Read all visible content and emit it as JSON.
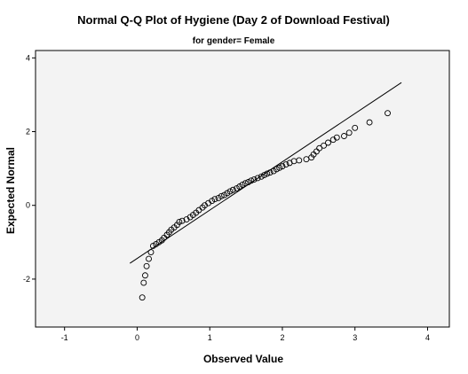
{
  "chart_data": {
    "type": "scatter",
    "title": "Normal Q-Q Plot of Hygiene (Day 2 of Download Festival)",
    "subtitle": "for gender= Female",
    "xlabel": "Observed Value",
    "ylabel": "Expected Normal",
    "xlim": [
      -1.4,
      4.3
    ],
    "ylim": [
      -3.3,
      4.2
    ],
    "x_ticks": [
      -1,
      0,
      1,
      2,
      3,
      4
    ],
    "y_ticks": [
      -2,
      0,
      2,
      4
    ],
    "grid": false,
    "reference_line": {
      "x": [
        -0.1,
        3.64
      ],
      "y": [
        -1.57,
        3.33
      ]
    },
    "points": [
      [
        0.07,
        -2.5
      ],
      [
        0.09,
        -2.1
      ],
      [
        0.11,
        -1.9
      ],
      [
        0.13,
        -1.65
      ],
      [
        0.16,
        -1.45
      ],
      [
        0.19,
        -1.27
      ],
      [
        0.22,
        -1.1
      ],
      [
        0.26,
        -1.05
      ],
      [
        0.3,
        -1.0
      ],
      [
        0.34,
        -0.95
      ],
      [
        0.37,
        -0.88
      ],
      [
        0.41,
        -0.8
      ],
      [
        0.44,
        -0.73
      ],
      [
        0.47,
        -0.66
      ],
      [
        0.51,
        -0.6
      ],
      [
        0.55,
        -0.53
      ],
      [
        0.58,
        -0.45
      ],
      [
        0.62,
        -0.42
      ],
      [
        0.68,
        -0.38
      ],
      [
        0.73,
        -0.32
      ],
      [
        0.77,
        -0.26
      ],
      [
        0.81,
        -0.2
      ],
      [
        0.85,
        -0.13
      ],
      [
        0.9,
        -0.06
      ],
      [
        0.93,
        0.0
      ],
      [
        0.98,
        0.06
      ],
      [
        1.03,
        0.12
      ],
      [
        1.07,
        0.17
      ],
      [
        1.12,
        0.2
      ],
      [
        1.16,
        0.25
      ],
      [
        1.2,
        0.28
      ],
      [
        1.24,
        0.33
      ],
      [
        1.28,
        0.38
      ],
      [
        1.32,
        0.42
      ],
      [
        1.37,
        0.46
      ],
      [
        1.41,
        0.51
      ],
      [
        1.45,
        0.56
      ],
      [
        1.49,
        0.6
      ],
      [
        1.53,
        0.63
      ],
      [
        1.57,
        0.67
      ],
      [
        1.61,
        0.7
      ],
      [
        1.66,
        0.74
      ],
      [
        1.71,
        0.78
      ],
      [
        1.75,
        0.82
      ],
      [
        1.79,
        0.86
      ],
      [
        1.83,
        0.89
      ],
      [
        1.88,
        0.93
      ],
      [
        1.92,
        0.98
      ],
      [
        1.96,
        1.02
      ],
      [
        2.0,
        1.06
      ],
      [
        2.05,
        1.11
      ],
      [
        2.1,
        1.15
      ],
      [
        2.16,
        1.2
      ],
      [
        2.23,
        1.22
      ],
      [
        2.33,
        1.25
      ],
      [
        2.4,
        1.3
      ],
      [
        2.43,
        1.38
      ],
      [
        2.47,
        1.46
      ],
      [
        2.51,
        1.55
      ],
      [
        2.57,
        1.62
      ],
      [
        2.63,
        1.7
      ],
      [
        2.7,
        1.78
      ],
      [
        2.75,
        1.84
      ],
      [
        2.85,
        1.88
      ],
      [
        2.92,
        1.97
      ],
      [
        3.0,
        2.1
      ],
      [
        3.2,
        2.25
      ],
      [
        3.45,
        2.5
      ]
    ]
  }
}
